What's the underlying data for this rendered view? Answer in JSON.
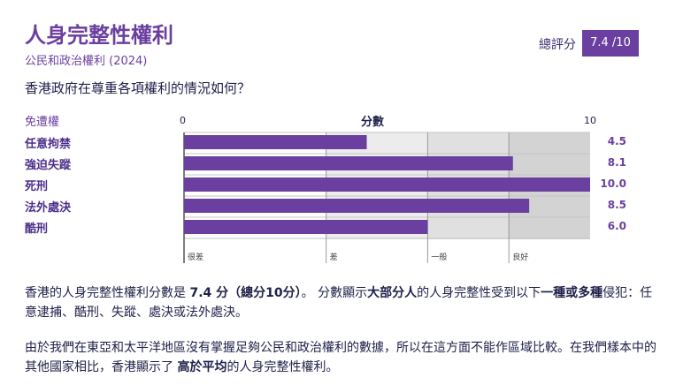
{
  "header": {
    "title": "人身完整性權利",
    "subtitle": "公民和政治權利 (2024)",
    "score_label": "總評分",
    "score_value": "7.4 /10"
  },
  "question": "香港政府在尊重各項權利的情況如何？",
  "chart_data": {
    "type": "bar",
    "orientation": "horizontal",
    "categories_header": "免遭權",
    "xlabel": "分數",
    "xlim": [
      0,
      10
    ],
    "x_ticks": [
      "0",
      "10"
    ],
    "categories": [
      "任意拘禁",
      "強迫失蹤",
      "死刑",
      "法外處決",
      "酷刑"
    ],
    "values": [
      4.5,
      8.1,
      10.0,
      8.5,
      6.0
    ],
    "value_labels": [
      "4.5",
      "8.1",
      "10.0",
      "8.5",
      "6.0"
    ],
    "bands": [
      {
        "label": "很差",
        "from": 0,
        "to": 3.5,
        "color": "#ffffff"
      },
      {
        "label": "差",
        "from": 3.5,
        "to": 6.0,
        "color": "#ececec"
      },
      {
        "label": "一般",
        "from": 6.0,
        "to": 8.0,
        "color": "#e0e0e0"
      },
      {
        "label": "良好",
        "from": 8.0,
        "to": 10.0,
        "color": "#d3d3d3"
      }
    ],
    "bar_color": "#6b3fa0"
  },
  "paragraphs": {
    "p1_a": "香港的人身完整性權利分數是 ",
    "p1_b": "7.4 分（總分10分）",
    "p1_c": "。 分數顯示",
    "p1_d": "大部分人",
    "p1_e": "的人身完整性受到以下",
    "p1_f": "一種或多種",
    "p1_g": "侵犯：任意逮捕、酷刑、失蹤、處決或法外處決。",
    "p2_a": "由於我們在東亞和太平洋地區沒有掌握足夠公民和政治權利的數據，所以在這方面不能作區域比較。在我們樣本中的其他國家相比，香港顯示了 ",
    "p2_b": "高於平均",
    "p2_c": "的人身完整性權利。"
  },
  "colors": {
    "accent": "#6b3fa0",
    "text": "#1f1f4a"
  }
}
